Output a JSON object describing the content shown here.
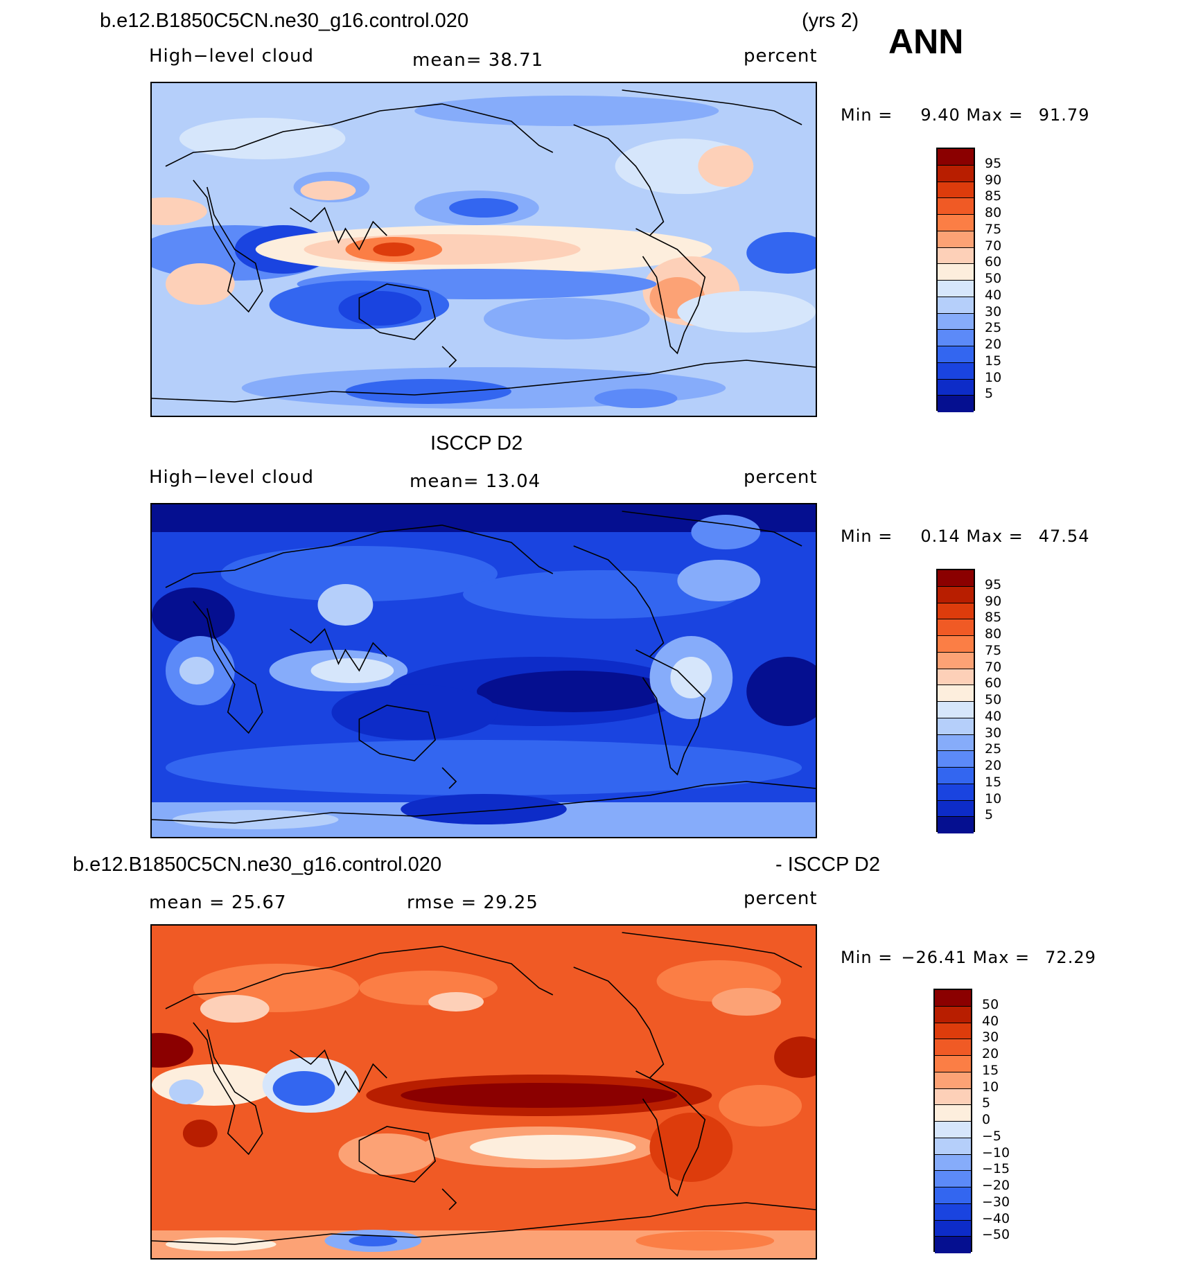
{
  "header": {
    "case_name": "b.e12.B1850C5CN.ne30_g16.control.020",
    "years": "(yrs 2)",
    "season": "ANN"
  },
  "panel1": {
    "title": "b.e12.B1850C5CN.ne30_g16.control.020",
    "variable": "High−level cloud",
    "mean_text": "mean=   38.71",
    "units": "percent",
    "min_label": "Min =",
    "min_value": "9.40",
    "max_label": "Max =",
    "max_value": "91.79",
    "mean": 38.71,
    "min": 9.4,
    "max": 91.79
  },
  "panel2": {
    "title": "ISCCP D2",
    "variable": "High−level cloud",
    "mean_text": "mean=   13.04",
    "units": "percent",
    "min_label": "Min =",
    "min_value": "0.14",
    "max_label": "Max =",
    "max_value": "47.54",
    "mean": 13.04,
    "min": 0.14,
    "max": 47.54
  },
  "panel3": {
    "title_left": "b.e12.B1850C5CN.ne30_g16.control.020",
    "title_right": "- ISCCP D2",
    "mean_text": "mean =   25.67",
    "rmse_text": "rmse =   29.25",
    "units": "percent",
    "min_label": "Min =",
    "min_value": "−26.41",
    "max_label": "Max =",
    "max_value": "72.29",
    "mean": 25.67,
    "rmse": 29.25,
    "min": -26.41,
    "max": 72.29
  },
  "colorbar_abs": {
    "labels": [
      "95",
      "90",
      "85",
      "80",
      "75",
      "70",
      "60",
      "50",
      "40",
      "30",
      "25",
      "20",
      "15",
      "10",
      "5"
    ],
    "colors": [
      "#8b0000",
      "#b81e00",
      "#dd3c0c",
      "#f05a25",
      "#fb7e45",
      "#fca275",
      "#fdd0b8",
      "#fdeedd",
      "#d6e6fb",
      "#b5cffa",
      "#86acfa",
      "#5c8af8",
      "#3366f0",
      "#1a44e0",
      "#0d2cc8",
      "#050f90"
    ]
  },
  "colorbar_diff": {
    "labels": [
      "50",
      "40",
      "30",
      "20",
      "15",
      "10",
      "5",
      "0",
      "−5",
      "−10",
      "−15",
      "−20",
      "−30",
      "−40",
      "−50"
    ],
    "colors": [
      "#8b0000",
      "#b81e00",
      "#dd3c0c",
      "#f05a25",
      "#fb7e45",
      "#fca275",
      "#fdd0b8",
      "#fdeedd",
      "#d6e6fb",
      "#b5cffa",
      "#86acfa",
      "#5c8af8",
      "#3366f0",
      "#1a44e0",
      "#0d2cc8",
      "#050f90"
    ]
  }
}
